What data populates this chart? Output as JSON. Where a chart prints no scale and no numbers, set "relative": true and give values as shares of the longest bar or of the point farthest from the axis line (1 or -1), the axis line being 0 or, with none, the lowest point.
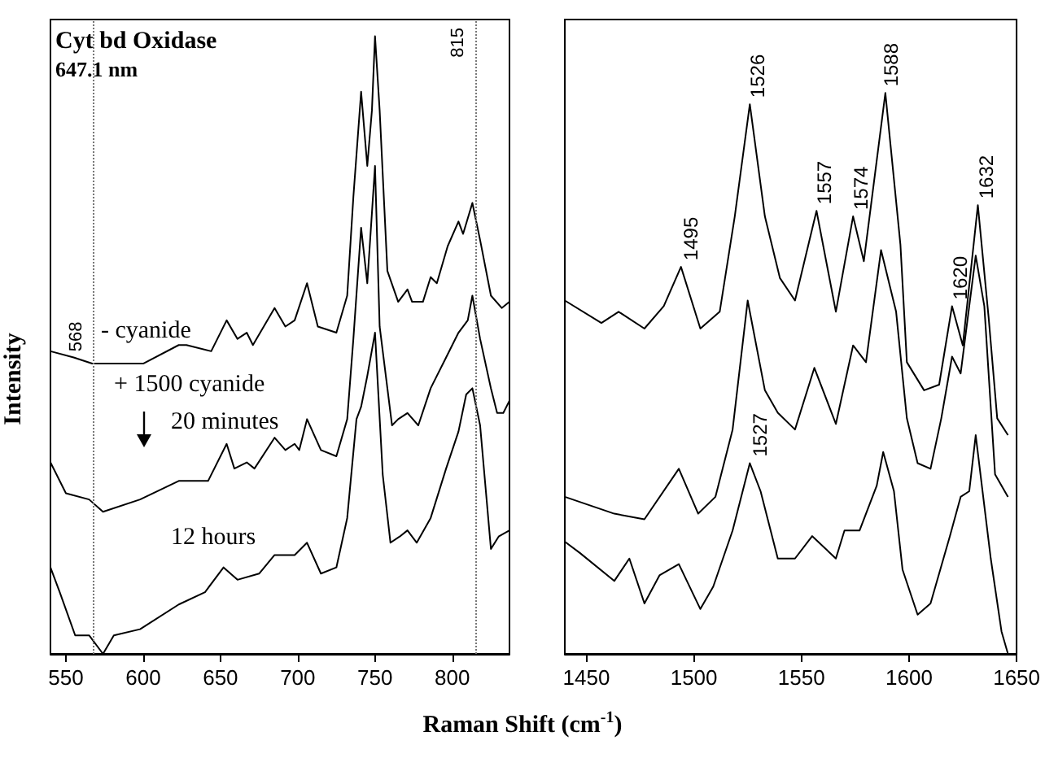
{
  "chart_data": [
    {
      "type": "line",
      "title": "Cyt bd Oxidase",
      "subtitle": "647.1 nm",
      "xlabel": "Raman Shift (cm$^{-1}$)",
      "ylabel": "Intensity",
      "relative": true,
      "xlim": [
        540,
        837
      ],
      "xticks": [
        550,
        600,
        650,
        700,
        750,
        800
      ],
      "marker": "none",
      "line_style": "solid",
      "annotations": [
        "+ 1500 cyanide"
      ],
      "ref_lines": [
        {
          "axis": "x",
          "value": 568,
          "label": "568",
          "color": "#777777",
          "line_style": "dotted"
        },
        {
          "axis": "x",
          "value": 815,
          "label": "815",
          "color": "#777777",
          "line_style": "dotted"
        }
      ],
      "series": [
        {
          "name": "- cyanide",
          "color": "#000000",
          "x": [
            540,
            555,
            567,
            577,
            600,
            623,
            628,
            644,
            654,
            661,
            667,
            671,
            685,
            692,
            698,
            706,
            713,
            725,
            732,
            736,
            741,
            745,
            748,
            750,
            753,
            758,
            765,
            771,
            774,
            781,
            786,
            790,
            797,
            804,
            807,
            813,
            818,
            825,
            832,
            837
          ],
          "values": [
            0.49,
            0.48,
            0.47,
            0.47,
            0.47,
            0.5,
            0.5,
            0.49,
            0.54,
            0.51,
            0.52,
            0.5,
            0.56,
            0.53,
            0.54,
            0.6,
            0.53,
            0.52,
            0.58,
            0.74,
            0.91,
            0.79,
            0.88,
            1.0,
            0.88,
            0.62,
            0.57,
            0.59,
            0.57,
            0.57,
            0.61,
            0.6,
            0.66,
            0.7,
            0.68,
            0.73,
            0.67,
            0.58,
            0.56,
            0.57
          ]
        },
        {
          "name": "20 minutes",
          "color": "#000000",
          "x": [
            540,
            550,
            565,
            574,
            598,
            623,
            642,
            654,
            659,
            667,
            672,
            685,
            692,
            698,
            701,
            706,
            715,
            725,
            732,
            736,
            741,
            745,
            750,
            753,
            758,
            761,
            765,
            771,
            778,
            786,
            796,
            804,
            810,
            813,
            818,
            825,
            829,
            833,
            837
          ],
          "values": [
            0.31,
            0.26,
            0.25,
            0.23,
            0.25,
            0.28,
            0.28,
            0.34,
            0.3,
            0.31,
            0.3,
            0.35,
            0.33,
            0.34,
            0.33,
            0.38,
            0.33,
            0.32,
            0.38,
            0.51,
            0.69,
            0.6,
            0.79,
            0.53,
            0.43,
            0.37,
            0.38,
            0.39,
            0.37,
            0.43,
            0.48,
            0.52,
            0.54,
            0.58,
            0.51,
            0.43,
            0.39,
            0.39,
            0.41
          ]
        },
        {
          "name": "12 hours",
          "color": "#000000",
          "x": [
            540,
            546,
            556,
            565,
            574,
            581,
            598,
            623,
            640,
            652,
            661,
            675,
            685,
            698,
            706,
            715,
            725,
            732,
            738,
            741,
            745,
            750,
            755,
            760,
            766,
            771,
            777,
            786,
            796,
            804,
            809,
            813,
            818,
            825,
            830,
            837
          ],
          "values": [
            0.14,
            0.1,
            0.03,
            0.03,
            0.0,
            0.03,
            0.04,
            0.08,
            0.1,
            0.14,
            0.12,
            0.13,
            0.16,
            0.16,
            0.18,
            0.13,
            0.14,
            0.22,
            0.38,
            0.4,
            0.45,
            0.52,
            0.29,
            0.18,
            0.19,
            0.2,
            0.18,
            0.22,
            0.3,
            0.36,
            0.42,
            0.43,
            0.37,
            0.17,
            0.19,
            0.2
          ]
        }
      ]
    },
    {
      "type": "line",
      "relative": true,
      "xlim": [
        1440,
        1650
      ],
      "xticks": [
        1450,
        1500,
        1550,
        1600,
        1650
      ],
      "marker": "none",
      "line_style": "solid",
      "annotations": [
        {
          "text": "1495",
          "x": 1495,
          "y": 0.69
        },
        {
          "text": "1526",
          "x": 1526,
          "y": 0.98
        },
        {
          "text": "1557",
          "x": 1557,
          "y": 0.79
        },
        {
          "text": "1574",
          "x": 1574,
          "y": 0.78
        },
        {
          "text": "1588",
          "x": 1588,
          "y": 1.0
        },
        {
          "text": "1620",
          "x": 1620,
          "y": 0.62
        },
        {
          "text": "1632",
          "x": 1632,
          "y": 0.8
        },
        {
          "text": "1527",
          "x": 1527,
          "y": 0.34
        }
      ],
      "series": [
        {
          "color": "#000000",
          "x": [
            1440,
            1457,
            1465,
            1477,
            1486,
            1494,
            1503,
            1512,
            1519,
            1526,
            1533,
            1540,
            1547,
            1557,
            1566,
            1574,
            1579,
            1589,
            1596,
            1599,
            1607,
            1614,
            1620,
            1625,
            1632,
            1637,
            1641,
            1646
          ],
          "values": [
            0.63,
            0.59,
            0.61,
            0.58,
            0.62,
            0.69,
            0.58,
            0.61,
            0.78,
            0.98,
            0.78,
            0.67,
            0.63,
            0.79,
            0.61,
            0.78,
            0.7,
            1.0,
            0.73,
            0.52,
            0.47,
            0.48,
            0.62,
            0.55,
            0.8,
            0.6,
            0.42,
            0.39
          ]
        },
        {
          "color": "#000000",
          "x": [
            1440,
            1463,
            1477,
            1493,
            1502,
            1510,
            1518,
            1525,
            1533,
            1539,
            1547,
            1556,
            1566,
            1574,
            1580,
            1587,
            1594,
            1599,
            1604,
            1610,
            1615,
            1620,
            1624,
            1631,
            1635,
            1640,
            1646
          ],
          "values": [
            0.28,
            0.25,
            0.24,
            0.33,
            0.25,
            0.28,
            0.4,
            0.63,
            0.47,
            0.43,
            0.4,
            0.51,
            0.41,
            0.55,
            0.52,
            0.72,
            0.61,
            0.42,
            0.34,
            0.33,
            0.42,
            0.53,
            0.5,
            0.71,
            0.62,
            0.32,
            0.28
          ]
        },
        {
          "color": "#000000",
          "x": [
            1440,
            1447,
            1463,
            1470,
            1477,
            1484,
            1493,
            1503,
            1509,
            1518,
            1526,
            1531,
            1539,
            1547,
            1555,
            1566,
            1570,
            1577,
            1585,
            1588,
            1593,
            1597,
            1604,
            1610,
            1619,
            1624,
            1628,
            1631,
            1638,
            1643,
            1646
          ],
          "values": [
            0.2,
            0.18,
            0.13,
            0.17,
            0.09,
            0.14,
            0.16,
            0.08,
            0.12,
            0.22,
            0.34,
            0.29,
            0.17,
            0.17,
            0.21,
            0.17,
            0.22,
            0.22,
            0.3,
            0.36,
            0.29,
            0.15,
            0.07,
            0.09,
            0.21,
            0.28,
            0.29,
            0.39,
            0.17,
            0.04,
            0.0
          ]
        }
      ]
    }
  ]
}
